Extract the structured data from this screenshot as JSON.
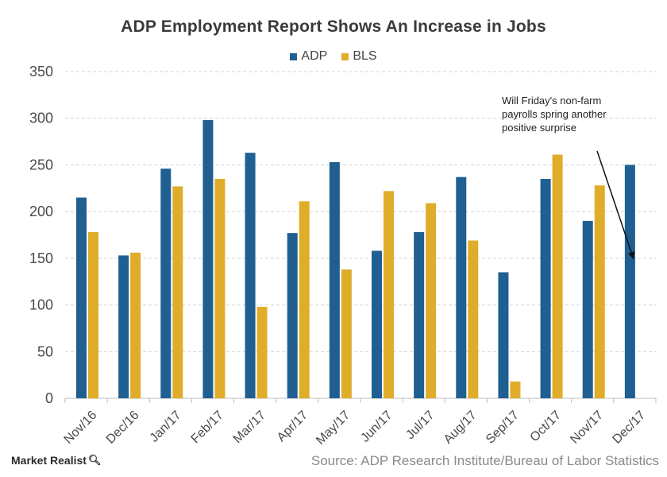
{
  "chart_data": {
    "type": "bar",
    "title": "ADP Employment Report Shows An Increase in Jobs",
    "categories": [
      "Nov/16",
      "Dec/16",
      "Jan/17",
      "Feb/17",
      "Mar/17",
      "Apr/17",
      "May/17",
      "Jun/17",
      "Jul/17",
      "Aug/17",
      "Sep/17",
      "Oct/17",
      "Nov/17",
      "Dec/17"
    ],
    "series": [
      {
        "name": "ADP",
        "color": "#1f5f91",
        "values": [
          215,
          153,
          246,
          298,
          263,
          177,
          253,
          158,
          178,
          237,
          135,
          235,
          190,
          250
        ]
      },
      {
        "name": "BLS",
        "color": "#e0ad2b",
        "values": [
          178,
          156,
          227,
          235,
          98,
          211,
          138,
          222,
          209,
          169,
          18,
          261,
          228,
          null
        ]
      }
    ],
    "ylim": [
      0,
      350
    ],
    "yticks": [
      "0",
      "50",
      "100",
      "150",
      "200",
      "250",
      "300",
      "350"
    ],
    "grid": true,
    "legend_position": "top-center",
    "xlabel": "",
    "ylabel": "",
    "annotation": "Will Friday's non-farm payrolls spring another positive surprise"
  },
  "footer": {
    "brand": "Market Realist",
    "brand_icon": "magnifier-icon",
    "source": "Source: ADP Research Institute/Bureau of Labor Statistics"
  }
}
